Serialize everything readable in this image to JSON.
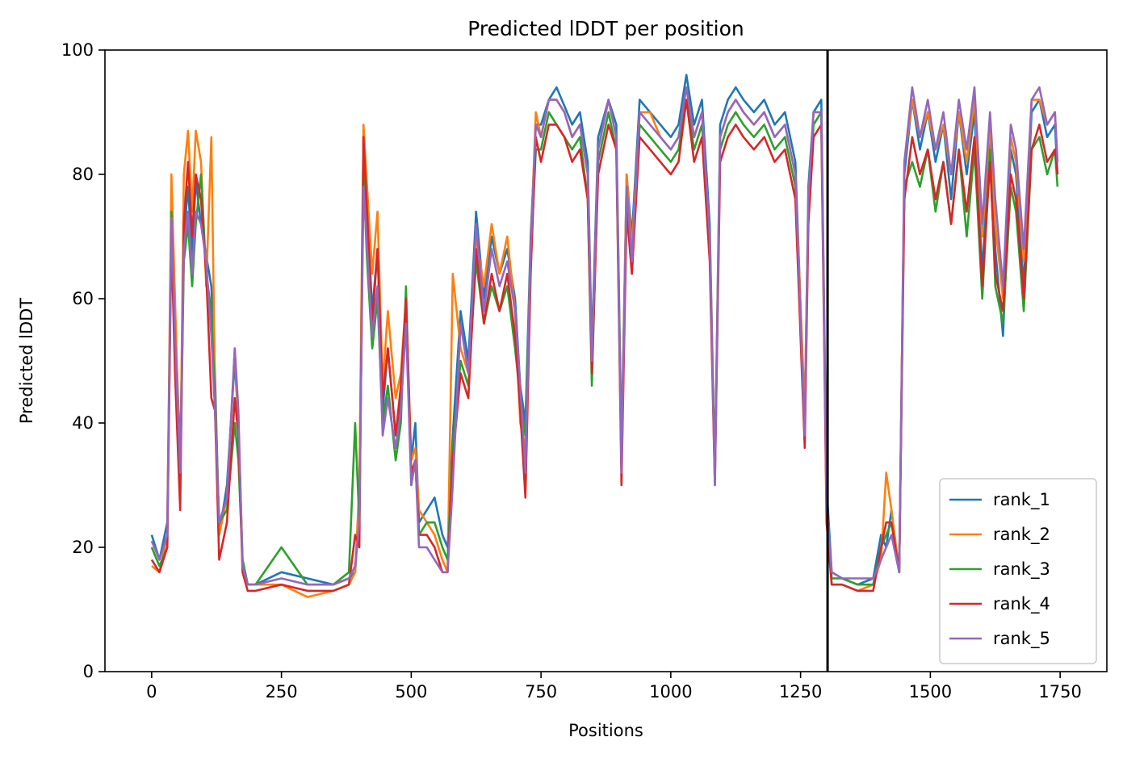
{
  "chart_data": {
    "type": "line",
    "title": "Predicted lDDT per position",
    "xlabel": "Positions",
    "ylabel": "Predicted lDDT",
    "xlim": [
      -90,
      1840
    ],
    "ylim": [
      0,
      100
    ],
    "xticks": [
      0,
      250,
      500,
      750,
      1000,
      1250,
      1500,
      1750
    ],
    "yticks": [
      0,
      20,
      40,
      60,
      80,
      100
    ],
    "grid": false,
    "legend_position": "bottom-right",
    "chain_break_x": 1302,
    "x": [
      0,
      15,
      30,
      38,
      45,
      55,
      62,
      70,
      78,
      85,
      95,
      105,
      115,
      122,
      130,
      145,
      160,
      167,
      175,
      185,
      200,
      250,
      300,
      350,
      380,
      392,
      400,
      408,
      415,
      425,
      435,
      445,
      455,
      470,
      480,
      490,
      500,
      508,
      515,
      530,
      545,
      560,
      570,
      580,
      595,
      610,
      625,
      640,
      655,
      670,
      685,
      700,
      710,
      720,
      730,
      740,
      750,
      765,
      780,
      795,
      810,
      825,
      840,
      848,
      860,
      880,
      895,
      905,
      915,
      925,
      940,
      960,
      980,
      1000,
      1015,
      1030,
      1045,
      1060,
      1075,
      1085,
      1095,
      1110,
      1125,
      1140,
      1160,
      1180,
      1200,
      1220,
      1240,
      1258,
      1265,
      1275,
      1290,
      1300,
      1310,
      1330,
      1360,
      1390,
      1405,
      1415,
      1425,
      1440,
      1450,
      1465,
      1480,
      1495,
      1510,
      1525,
      1540,
      1555,
      1570,
      1585,
      1600,
      1615,
      1625,
      1640,
      1655,
      1665,
      1680,
      1695,
      1710,
      1725,
      1740,
      1745
    ],
    "series": [
      {
        "name": "rank_1",
        "color": "#1f77b4",
        "values": [
          22,
          18,
          24,
          72,
          58,
          34,
          70,
          78,
          67,
          79,
          72,
          67,
          62,
          48,
          22,
          30,
          50,
          40,
          18,
          14,
          14,
          16,
          15,
          14,
          15,
          16,
          26,
          84,
          74,
          58,
          68,
          42,
          52,
          38,
          44,
          58,
          34,
          40,
          24,
          26,
          28,
          22,
          20,
          38,
          58,
          50,
          74,
          60,
          70,
          64,
          68,
          60,
          46,
          40,
          70,
          88,
          88,
          92,
          94,
          91,
          88,
          90,
          82,
          52,
          86,
          92,
          88,
          36,
          80,
          70,
          92,
          90,
          88,
          86,
          88,
          96,
          88,
          92,
          72,
          32,
          88,
          92,
          94,
          92,
          90,
          92,
          88,
          90,
          82,
          40,
          78,
          90,
          92,
          30,
          16,
          15,
          14,
          15,
          22,
          20,
          26,
          16,
          80,
          92,
          84,
          90,
          82,
          88,
          76,
          90,
          80,
          90,
          64,
          88,
          68,
          54,
          84,
          80,
          62,
          90,
          92,
          86,
          88,
          80
        ]
      },
      {
        "name": "rank_2",
        "color": "#ff7f0e",
        "values": [
          17,
          16,
          22,
          80,
          60,
          30,
          80,
          87,
          74,
          87,
          82,
          62,
          86,
          46,
          22,
          28,
          52,
          40,
          18,
          14,
          14,
          14,
          12,
          13,
          14,
          16,
          30,
          88,
          78,
          64,
          74,
          46,
          58,
          44,
          48,
          60,
          34,
          36,
          26,
          24,
          22,
          18,
          16,
          64,
          52,
          48,
          70,
          62,
          72,
          64,
          70,
          58,
          40,
          36,
          68,
          90,
          86,
          92,
          92,
          90,
          86,
          88,
          80,
          50,
          84,
          92,
          86,
          34,
          80,
          68,
          90,
          90,
          86,
          84,
          86,
          94,
          86,
          90,
          70,
          32,
          86,
          90,
          92,
          90,
          88,
          90,
          86,
          88,
          80,
          42,
          76,
          90,
          90,
          28,
          14,
          14,
          13,
          14,
          18,
          32,
          26,
          16,
          82,
          92,
          86,
          90,
          84,
          88,
          80,
          90,
          82,
          92,
          70,
          88,
          72,
          60,
          86,
          82,
          66,
          92,
          92,
          88,
          90,
          82
        ]
      },
      {
        "name": "rank_3",
        "color": "#2ca02c",
        "values": [
          20,
          17,
          20,
          74,
          52,
          30,
          66,
          72,
          62,
          72,
          80,
          64,
          58,
          44,
          24,
          26,
          40,
          34,
          18,
          14,
          14,
          20,
          14,
          14,
          16,
          40,
          24,
          80,
          66,
          52,
          60,
          40,
          46,
          34,
          40,
          62,
          30,
          34,
          22,
          24,
          24,
          20,
          18,
          36,
          50,
          46,
          66,
          56,
          62,
          58,
          62,
          52,
          44,
          38,
          66,
          84,
          84,
          90,
          88,
          86,
          84,
          86,
          76,
          46,
          82,
          90,
          84,
          34,
          76,
          64,
          88,
          86,
          84,
          82,
          84,
          92,
          84,
          88,
          68,
          32,
          84,
          88,
          90,
          88,
          86,
          88,
          84,
          86,
          78,
          38,
          74,
          88,
          90,
          26,
          15,
          15,
          14,
          14,
          20,
          22,
          24,
          16,
          78,
          82,
          78,
          84,
          74,
          82,
          72,
          84,
          70,
          84,
          60,
          84,
          62,
          56,
          78,
          74,
          58,
          84,
          86,
          80,
          84,
          78
        ]
      },
      {
        "name": "rank_4",
        "color": "#d62728",
        "values": [
          18,
          16,
          20,
          70,
          48,
          26,
          72,
          82,
          70,
          80,
          76,
          64,
          44,
          42,
          18,
          24,
          44,
          38,
          16,
          13,
          13,
          14,
          13,
          13,
          14,
          22,
          20,
          86,
          74,
          56,
          68,
          44,
          52,
          38,
          46,
          60,
          32,
          34,
          22,
          22,
          20,
          16,
          16,
          34,
          48,
          44,
          68,
          56,
          64,
          58,
          64,
          54,
          42,
          28,
          64,
          86,
          82,
          88,
          88,
          86,
          82,
          84,
          76,
          48,
          80,
          88,
          84,
          30,
          74,
          64,
          86,
          84,
          82,
          80,
          82,
          92,
          82,
          86,
          66,
          30,
          82,
          86,
          88,
          86,
          84,
          86,
          82,
          84,
          76,
          36,
          72,
          86,
          88,
          24,
          14,
          14,
          13,
          13,
          20,
          24,
          24,
          16,
          76,
          86,
          80,
          84,
          76,
          82,
          72,
          84,
          74,
          86,
          62,
          82,
          64,
          58,
          80,
          76,
          60,
          84,
          88,
          82,
          84,
          80
        ]
      },
      {
        "name": "rank_5",
        "color": "#9467bd",
        "values": [
          21,
          18,
          22,
          73,
          54,
          32,
          68,
          74,
          64,
          74,
          72,
          66,
          54,
          42,
          24,
          28,
          52,
          42,
          17,
          14,
          14,
          15,
          14,
          14,
          15,
          17,
          24,
          78,
          68,
          54,
          62,
          38,
          44,
          36,
          42,
          56,
          30,
          34,
          20,
          20,
          18,
          16,
          16,
          30,
          56,
          48,
          72,
          58,
          68,
          62,
          66,
          58,
          46,
          32,
          68,
          88,
          86,
          92,
          92,
          90,
          86,
          88,
          80,
          50,
          84,
          92,
          86,
          32,
          78,
          66,
          90,
          88,
          86,
          84,
          86,
          94,
          86,
          90,
          70,
          30,
          86,
          90,
          92,
          90,
          88,
          90,
          86,
          88,
          80,
          38,
          76,
          90,
          90,
          27,
          16,
          15,
          15,
          15,
          18,
          20,
          22,
          16,
          82,
          94,
          86,
          92,
          84,
          90,
          80,
          92,
          84,
          94,
          72,
          90,
          76,
          62,
          88,
          84,
          68,
          92,
          94,
          88,
          90,
          82
        ]
      }
    ]
  }
}
